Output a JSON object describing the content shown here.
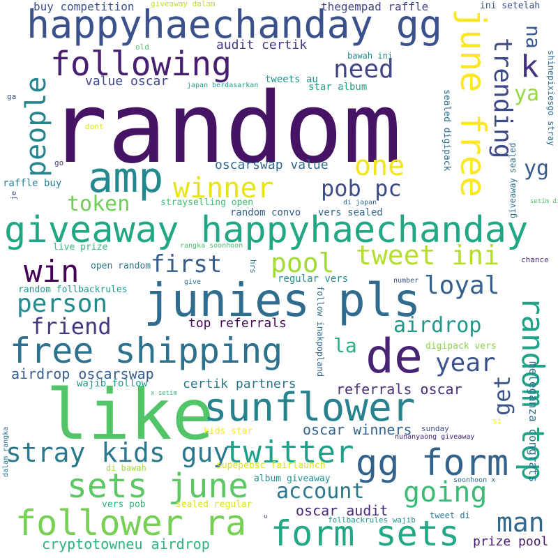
{
  "words": [
    {
      "text": "random",
      "color": "#471365"
    },
    {
      "text": "like",
      "color": "#52c569"
    },
    {
      "text": "junies pls",
      "color": "#2f6c8e"
    },
    {
      "text": "sunflower",
      "color": "#26828e"
    },
    {
      "text": "giveaway happyhaechanday",
      "color": "#22a785"
    },
    {
      "text": "free shipping",
      "color": "#2c728e"
    },
    {
      "text": "happyhaechanday gg",
      "color": "#3b518b"
    },
    {
      "text": "follower ra",
      "color": "#75d054"
    },
    {
      "text": "form sets",
      "color": "#22a884"
    },
    {
      "text": "de",
      "color": "#482374"
    },
    {
      "text": "gg form",
      "color": "#33638d"
    },
    {
      "text": "sets june",
      "color": "#5cc863"
    },
    {
      "text": "june free",
      "color": "#fde725"
    },
    {
      "text": "random top",
      "color": "#20a386"
    },
    {
      "text": "amp",
      "color": "#23898e"
    },
    {
      "text": "following",
      "color": "#481f70"
    },
    {
      "text": "twitter",
      "color": "#1fa088"
    },
    {
      "text": "stray kids guy",
      "color": "#2a788e"
    },
    {
      "text": "win",
      "color": "#440154"
    },
    {
      "text": "tweet ini",
      "color": "#b5de2b"
    },
    {
      "text": "winner",
      "color": "#e7e419"
    },
    {
      "text": "people",
      "color": "#25858e"
    },
    {
      "text": "going",
      "color": "#3bbb75"
    },
    {
      "text": "man",
      "color": "#31688e"
    },
    {
      "text": "pool",
      "color": "#a2da37"
    },
    {
      "text": "person",
      "color": "#238a8d"
    },
    {
      "text": "trending",
      "color": "#3e4a89"
    },
    {
      "text": "one",
      "color": "#f1e51d"
    },
    {
      "text": "need",
      "color": "#414487"
    },
    {
      "text": "loyal",
      "color": "#355f8d"
    },
    {
      "text": "year",
      "color": "#3b528b"
    },
    {
      "text": "account",
      "color": "#2a768e"
    },
    {
      "text": "k",
      "color": "#46337f"
    },
    {
      "text": "friend",
      "color": "#453882"
    },
    {
      "text": "first",
      "color": "#375b8d"
    },
    {
      "text": "pob pc",
      "color": "#3e4c8a"
    },
    {
      "text": "airdrop",
      "color": "#1f988b"
    },
    {
      "text": "token",
      "color": "#6ece58"
    },
    {
      "text": "get",
      "color": "#3a538b"
    },
    {
      "text": "cryptotowneu airdrop",
      "color": "#2db27d"
    },
    {
      "text": "na",
      "color": "#38598c"
    },
    {
      "text": "ya",
      "color": "#95d840"
    },
    {
      "text": "yg",
      "color": "#375a8c"
    },
    {
      "text": "la",
      "color": "#29af7f"
    },
    {
      "text": "oscar audit",
      "color": "#482878"
    },
    {
      "text": "referrals oscar",
      "color": "#472d7b"
    },
    {
      "text": "airdrop oscarswap",
      "color": "#365d8d"
    },
    {
      "text": "oscar winners",
      "color": "#32648e"
    },
    {
      "text": "certik partners",
      "color": "#2a778e"
    },
    {
      "text": "top referrals",
      "color": "#46085c"
    },
    {
      "text": "audit certik",
      "color": "#453781"
    },
    {
      "text": "value oscar",
      "color": "#3f4889"
    },
    {
      "text": "oscarswap value",
      "color": "#31688e"
    },
    {
      "text": "random convo",
      "color": "#355f8d"
    },
    {
      "text": "vers sealed",
      "color": "#31688e"
    },
    {
      "text": "prize pool",
      "color": "#48186a"
    },
    {
      "text": "meleganza congrats",
      "color": "#2c738e"
    },
    {
      "text": "buy competition",
      "color": "#3b528b"
    },
    {
      "text": "thegempad raffle",
      "color": "#414487"
    },
    {
      "text": "tweets au",
      "color": "#1f988b"
    },
    {
      "text": "star album",
      "color": "#1fa088"
    },
    {
      "text": "regular vers",
      "color": "#228c8d"
    },
    {
      "text": "raffle buy",
      "color": "#26828e"
    },
    {
      "text": "wajib follow",
      "color": "#1f9a8a"
    },
    {
      "text": "random follbackrules",
      "color": "#1e9c89"
    },
    {
      "text": "open random",
      "color": "#2a788e"
    },
    {
      "text": "live prize",
      "color": "#35b779"
    },
    {
      "text": "strayselling open",
      "color": "#3fbc73"
    },
    {
      "text": "kids star",
      "color": "#fde725"
    },
    {
      "text": "supepebsc fairlaunch",
      "color": "#d8e219"
    },
    {
      "text": "album giveaway",
      "color": "#21918c"
    },
    {
      "text": "vers pob",
      "color": "#2db27d"
    },
    {
      "text": "sealed regular",
      "color": "#dde318"
    },
    {
      "text": "di bawah",
      "color": "#a5db36"
    },
    {
      "text": "sealed digipack",
      "color": "#2e6f8e"
    },
    {
      "text": "digipack vers",
      "color": "#8bd646"
    },
    {
      "text": "giveaway sealed",
      "color": "#2d708e"
    },
    {
      "text": "shinepixiesgo stray",
      "color": "#2e6e8e"
    },
    {
      "text": "follow inakpopland",
      "color": "#306a8e"
    },
    {
      "text": "sunday",
      "color": "#3c4f8a"
    },
    {
      "text": "nunanyaong giveaway",
      "color": "#482677"
    },
    {
      "text": "soonhoon x",
      "color": "#2f6c8e"
    },
    {
      "text": "tweet di",
      "color": "#2b748e"
    },
    {
      "text": "follbackrules wajib",
      "color": "#1f958b"
    },
    {
      "text": "ini setelah",
      "color": "#3d4d8a"
    },
    {
      "text": "bawah ini",
      "color": "#238a8d"
    },
    {
      "text": "japan berdasarkan",
      "color": "#1fa088"
    },
    {
      "text": "giveaway dalam",
      "color": "#c2df23"
    },
    {
      "text": "old",
      "color": "#56c667"
    },
    {
      "text": "dont",
      "color": "#dce319"
    },
    {
      "text": "ga",
      "color": "#3b528b"
    },
    {
      "text": "go",
      "color": "#433e85"
    },
    {
      "text": "je",
      "color": "#38598c"
    },
    {
      "text": "di japan",
      "color": "#31688e"
    },
    {
      "text": "rangka soonhoon",
      "color": "#4ac16d"
    },
    {
      "text": "hrs",
      "color": "#2d708e"
    },
    {
      "text": "give",
      "color": "#2a778e"
    },
    {
      "text": "chance",
      "color": "#472c7a"
    },
    {
      "text": "number",
      "color": "#3d4d8a"
    },
    {
      "text": "setim di",
      "color": "#52c569"
    },
    {
      "text": "dalam rangka",
      "color": "#2c738e"
    },
    {
      "text": "x setim",
      "color": "#35b779"
    },
    {
      "text": "si",
      "color": "#fde725"
    },
    {
      "text": "u",
      "color": "#424186"
    }
  ]
}
